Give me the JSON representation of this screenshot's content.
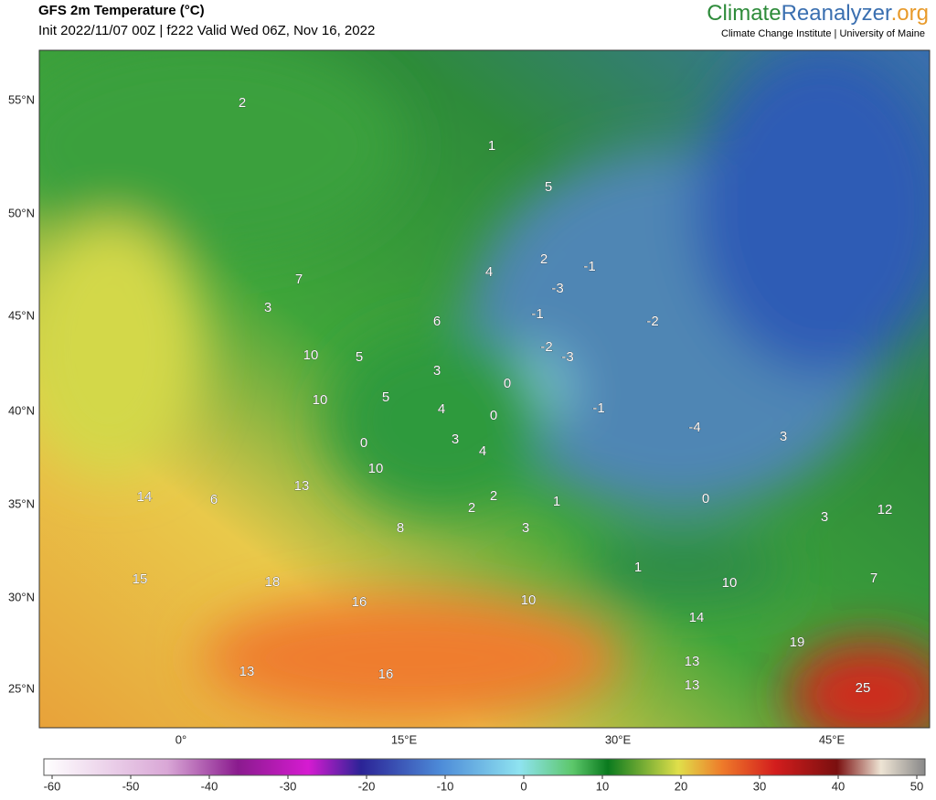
{
  "header": {
    "title": "GFS 2m Temperature (°C)",
    "subtitle": "Init 2022/11/07 00Z | f222 Valid Wed 06Z, Nov 16, 2022",
    "brand": [
      "Climate",
      "Reanalyzer",
      ".org"
    ],
    "institute": "Climate Change Institute | University of Maine"
  },
  "map": {
    "lat_labels": [
      "55°N",
      "50°N",
      "45°N",
      "40°N",
      "35°N",
      "30°N",
      "25°N"
    ],
    "lon_labels": [
      "0°",
      "15°E",
      "30°E",
      "45°E"
    ],
    "temperature_labels": [
      2,
      1,
      5,
      4,
      2,
      -1,
      -3,
      -1,
      6,
      -2,
      7,
      3,
      10,
      5,
      -2,
      -3,
      3,
      0,
      10,
      5,
      4,
      -1,
      0,
      -4,
      3,
      3,
      4,
      0,
      10,
      13,
      14,
      6,
      2,
      2,
      1,
      0,
      12,
      3,
      8,
      3,
      15,
      18,
      1,
      10,
      7,
      16,
      10,
      14,
      19,
      13,
      13,
      16,
      13,
      25
    ]
  },
  "colorbar": {
    "ticks": [
      -60,
      -50,
      -40,
      -30,
      -20,
      -10,
      0,
      10,
      20,
      30,
      40,
      50
    ]
  }
}
